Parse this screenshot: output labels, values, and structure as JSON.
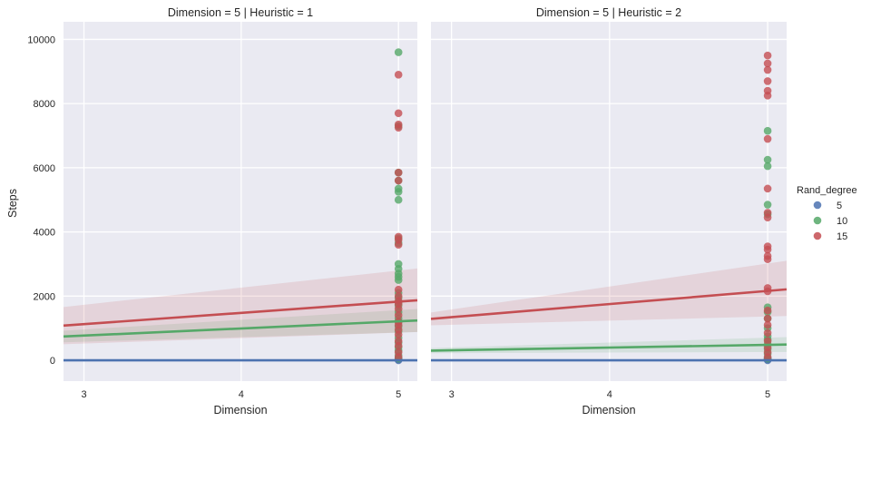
{
  "chart_data": {
    "type": "scatter",
    "subtype": "regression-facet-grid",
    "ylabel": "Steps",
    "legend": {
      "title": "Rand_degree",
      "placement": "right",
      "entries": [
        {
          "label": "5",
          "color": "#4c72b0"
        },
        {
          "label": "10",
          "color": "#55a868"
        },
        {
          "label": "15",
          "color": "#c44e52"
        }
      ]
    },
    "grid": true,
    "background": "#eaeaf2",
    "panels": [
      {
        "title": "Dimension = 5 | Heuristic = 1",
        "xlabel": "Dimension",
        "xlim": [
          2.87,
          5.12
        ],
        "ylim": [
          -650,
          10550
        ],
        "xticks": [
          3,
          4,
          5
        ],
        "yticks": [
          0,
          2000,
          4000,
          6000,
          8000,
          10000
        ],
        "series": [
          {
            "name": "5",
            "color": "#4c72b0",
            "points": [
              {
                "x": 5,
                "y": 0
              },
              {
                "x": 5,
                "y": 20
              },
              {
                "x": 5,
                "y": 40
              },
              {
                "x": 5,
                "y": 60
              }
            ],
            "fit": {
              "x": [
                2.87,
                5.12
              ],
              "y": [
                0,
                0
              ]
            },
            "band": {
              "x": [
                2.87,
                5.12
              ],
              "lower": [
                0,
                0
              ],
              "upper": [
                0,
                0
              ]
            }
          },
          {
            "name": "10",
            "color": "#55a868",
            "points": [
              {
                "x": 5,
                "y": 9600
              },
              {
                "x": 5,
                "y": 7300
              },
              {
                "x": 5,
                "y": 5850
              },
              {
                "x": 5,
                "y": 5600
              },
              {
                "x": 5,
                "y": 5350
              },
              {
                "x": 5,
                "y": 5250
              },
              {
                "x": 5,
                "y": 5000
              },
              {
                "x": 5,
                "y": 3800
              },
              {
                "x": 5,
                "y": 3650
              },
              {
                "x": 5,
                "y": 3000
              },
              {
                "x": 5,
                "y": 2850
              },
              {
                "x": 5,
                "y": 2700
              },
              {
                "x": 5,
                "y": 2600
              },
              {
                "x": 5,
                "y": 2500
              },
              {
                "x": 5,
                "y": 2100
              },
              {
                "x": 5,
                "y": 1950
              },
              {
                "x": 5,
                "y": 1800
              },
              {
                "x": 5,
                "y": 1700
              },
              {
                "x": 5,
                "y": 1500
              },
              {
                "x": 5,
                "y": 1300
              },
              {
                "x": 5,
                "y": 1200
              },
              {
                "x": 5,
                "y": 1050
              },
              {
                "x": 5,
                "y": 900
              },
              {
                "x": 5,
                "y": 700
              },
              {
                "x": 5,
                "y": 550
              },
              {
                "x": 5,
                "y": 400
              },
              {
                "x": 5,
                "y": 300
              },
              {
                "x": 5,
                "y": 150
              },
              {
                "x": 5,
                "y": 50
              }
            ],
            "fit": {
              "x": [
                2.87,
                5.12
              ],
              "y": [
                740,
                1240
              ]
            },
            "band": {
              "x": [
                2.87,
                5.12
              ],
              "lower": [
                560,
                880
              ],
              "upper": [
                920,
                1600
              ]
            }
          },
          {
            "name": "15",
            "color": "#c44e52",
            "points": [
              {
                "x": 5,
                "y": 8900
              },
              {
                "x": 5,
                "y": 7700
              },
              {
                "x": 5,
                "y": 7350
              },
              {
                "x": 5,
                "y": 7250
              },
              {
                "x": 5,
                "y": 5850
              },
              {
                "x": 5,
                "y": 5600
              },
              {
                "x": 5,
                "y": 3850
              },
              {
                "x": 5,
                "y": 3750
              },
              {
                "x": 5,
                "y": 3600
              },
              {
                "x": 5,
                "y": 2200
              },
              {
                "x": 5,
                "y": 2000
              },
              {
                "x": 5,
                "y": 1850
              },
              {
                "x": 5,
                "y": 1750
              },
              {
                "x": 5,
                "y": 1600
              },
              {
                "x": 5,
                "y": 1400
              },
              {
                "x": 5,
                "y": 1200
              },
              {
                "x": 5,
                "y": 1100
              },
              {
                "x": 5,
                "y": 950
              },
              {
                "x": 5,
                "y": 800
              },
              {
                "x": 5,
                "y": 600
              },
              {
                "x": 5,
                "y": 450
              },
              {
                "x": 5,
                "y": 250
              },
              {
                "x": 5,
                "y": 100
              }
            ],
            "fit": {
              "x": [
                2.87,
                5.12
              ],
              "y": [
                1080,
                1870
              ]
            },
            "band": {
              "x": [
                2.87,
                5.12
              ],
              "lower": [
                500,
                880
              ],
              "upper": [
                1660,
                2860
              ]
            }
          }
        ]
      },
      {
        "title": "Dimension = 5 | Heuristic = 2",
        "xlabel": "Dimension",
        "xlim": [
          2.87,
          5.12
        ],
        "ylim": [
          -650,
          10550
        ],
        "xticks": [
          3,
          4,
          5
        ],
        "yticks": [
          0,
          2000,
          4000,
          6000,
          8000,
          10000
        ],
        "series": [
          {
            "name": "5",
            "color": "#4c72b0",
            "points": [
              {
                "x": 5,
                "y": 0
              },
              {
                "x": 5,
                "y": 20
              },
              {
                "x": 5,
                "y": 40
              },
              {
                "x": 5,
                "y": 60
              }
            ],
            "fit": {
              "x": [
                2.87,
                5.12
              ],
              "y": [
                0,
                0
              ]
            },
            "band": {
              "x": [
                2.87,
                5.12
              ],
              "lower": [
                0,
                0
              ],
              "upper": [
                0,
                0
              ]
            }
          },
          {
            "name": "10",
            "color": "#55a868",
            "points": [
              {
                "x": 5,
                "y": 7150
              },
              {
                "x": 5,
                "y": 6250
              },
              {
                "x": 5,
                "y": 6050
              },
              {
                "x": 5,
                "y": 4850
              },
              {
                "x": 5,
                "y": 4550
              },
              {
                "x": 5,
                "y": 1650
              },
              {
                "x": 5,
                "y": 1500
              },
              {
                "x": 5,
                "y": 1300
              },
              {
                "x": 5,
                "y": 1000
              },
              {
                "x": 5,
                "y": 750
              },
              {
                "x": 5,
                "y": 650
              },
              {
                "x": 5,
                "y": 500
              },
              {
                "x": 5,
                "y": 350
              },
              {
                "x": 5,
                "y": 200
              },
              {
                "x": 5,
                "y": 50
              }
            ],
            "fit": {
              "x": [
                2.87,
                5.12
              ],
              "y": [
                300,
                490
              ]
            },
            "band": {
              "x": [
                2.87,
                5.12
              ],
              "lower": [
                220,
                260
              ],
              "upper": [
                380,
                720
              ]
            }
          },
          {
            "name": "15",
            "color": "#c44e52",
            "points": [
              {
                "x": 5,
                "y": 9500
              },
              {
                "x": 5,
                "y": 9250
              },
              {
                "x": 5,
                "y": 9050
              },
              {
                "x": 5,
                "y": 8700
              },
              {
                "x": 5,
                "y": 8400
              },
              {
                "x": 5,
                "y": 8250
              },
              {
                "x": 5,
                "y": 6900
              },
              {
                "x": 5,
                "y": 5350
              },
              {
                "x": 5,
                "y": 4600
              },
              {
                "x": 5,
                "y": 4450
              },
              {
                "x": 5,
                "y": 3550
              },
              {
                "x": 5,
                "y": 3450
              },
              {
                "x": 5,
                "y": 3250
              },
              {
                "x": 5,
                "y": 3150
              },
              {
                "x": 5,
                "y": 2250
              },
              {
                "x": 5,
                "y": 2150
              },
              {
                "x": 5,
                "y": 1550
              },
              {
                "x": 5,
                "y": 1300
              },
              {
                "x": 5,
                "y": 1100
              },
              {
                "x": 5,
                "y": 850
              },
              {
                "x": 5,
                "y": 600
              },
              {
                "x": 5,
                "y": 400
              },
              {
                "x": 5,
                "y": 250
              },
              {
                "x": 5,
                "y": 100
              }
            ],
            "fit": {
              "x": [
                2.87,
                5.12
              ],
              "y": [
                1290,
                2210
              ]
            },
            "band": {
              "x": [
                2.87,
                5.12
              ],
              "lower": [
                1090,
                1380
              ],
              "upper": [
                1490,
                3100
              ]
            }
          }
        ]
      }
    ]
  }
}
